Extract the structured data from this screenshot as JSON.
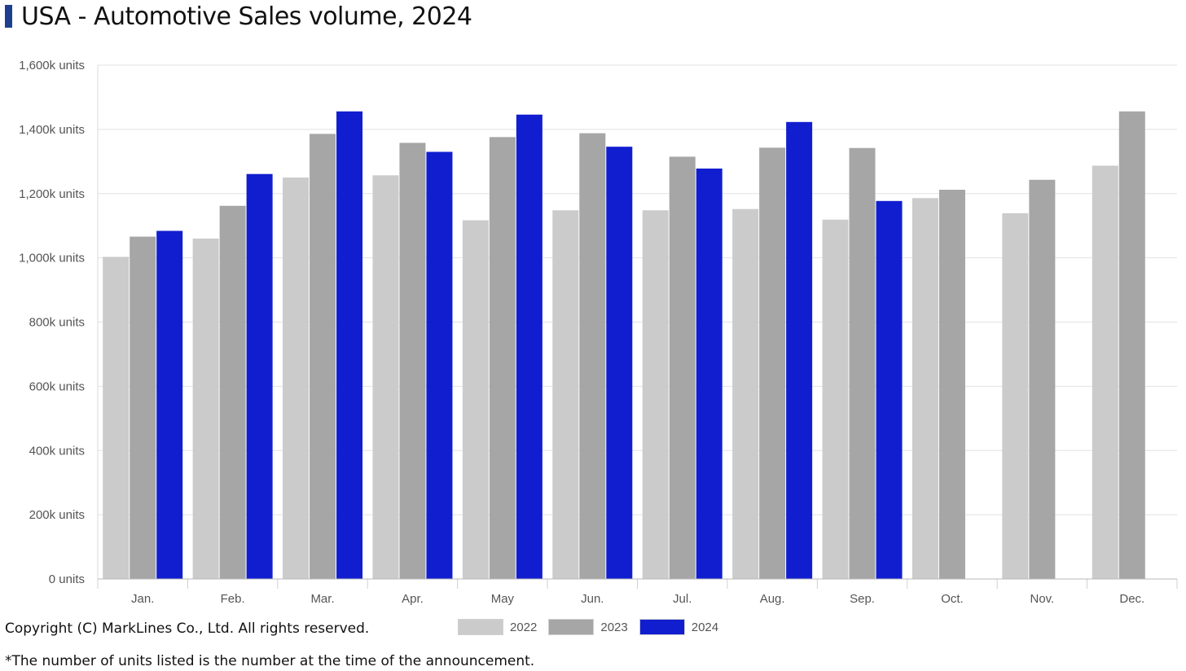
{
  "title": "USA - Automotive Sales volume, 2024",
  "copyright": "Copyright (C) MarkLines Co., Ltd. All rights reserved.",
  "footnote": "*The number of units listed is the number at the time of the announcement.",
  "colors": {
    "accent": "#1e3f8f",
    "s2022": "#cbcbcb",
    "s2023": "#a6a6a6",
    "s2024": "#111ecf"
  },
  "chart_data": {
    "type": "bar",
    "title": "USA - Automotive Sales volume, 2024",
    "categories": [
      "Jan.",
      "Feb.",
      "Mar.",
      "Apr.",
      "May",
      "Jun.",
      "Jul.",
      "Aug.",
      "Sep.",
      "Oct.",
      "Nov.",
      "Dec."
    ],
    "series": [
      {
        "name": "2022",
        "color": "#cbcbcb",
        "values": [
          1003,
          1060,
          1250,
          1257,
          1117,
          1148,
          1148,
          1152,
          1119,
          1186,
          1139,
          1287
        ]
      },
      {
        "name": "2023",
        "color": "#a6a6a6",
        "values": [
          1066,
          1162,
          1386,
          1358,
          1376,
          1388,
          1315,
          1343,
          1342,
          1212,
          1243,
          1456
        ]
      },
      {
        "name": "2024",
        "color": "#111ecf",
        "values": [
          1084,
          1261,
          1456,
          1330,
          1446,
          1346,
          1278,
          1423,
          1177,
          null,
          null,
          null
        ]
      }
    ],
    "yticks": [
      "0 units",
      "200k units",
      "400k units",
      "600k units",
      "800k units",
      "1,000k units",
      "1,200k units",
      "1,400k units",
      "1,600k units"
    ],
    "ylim": [
      0,
      1600
    ],
    "grid": true,
    "legend_position": "bottom-center"
  }
}
